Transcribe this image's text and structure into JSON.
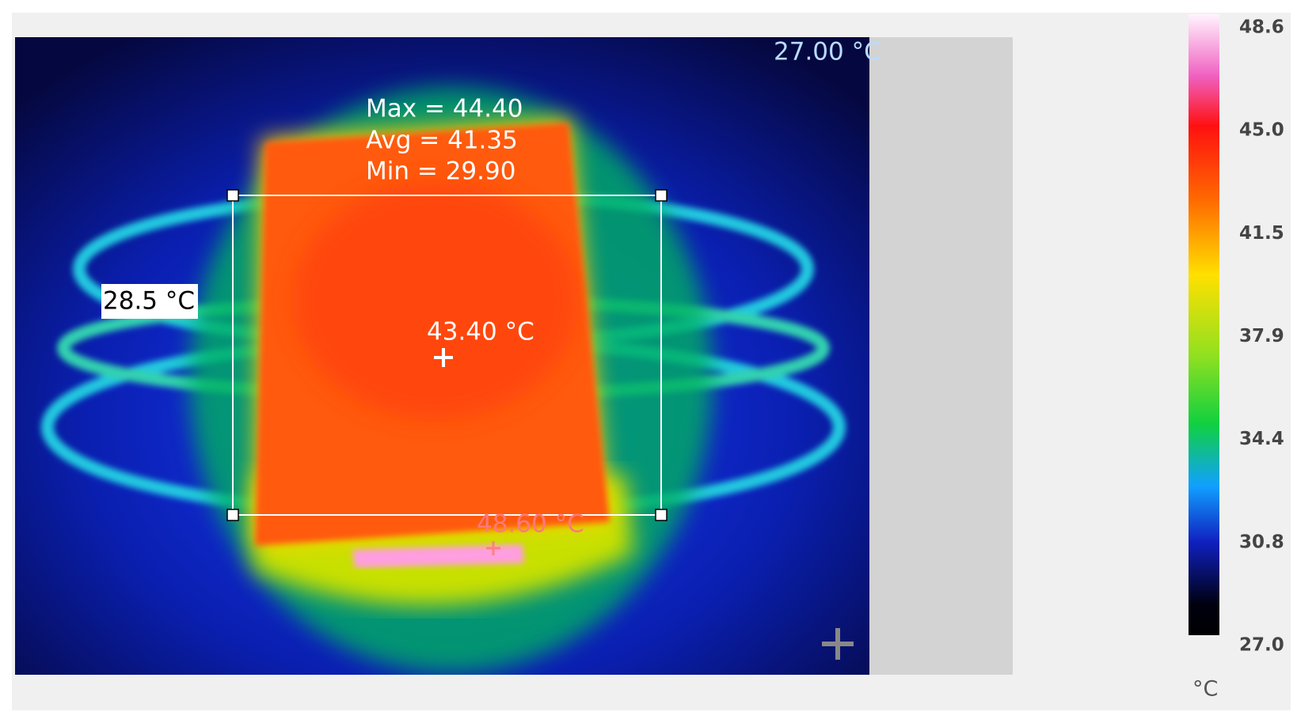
{
  "image": {
    "corner_label": "27.00 °C",
    "spot_label": "28.5 °C",
    "center_label": "43.40 °C",
    "hotspot_label": "48.60 °C"
  },
  "roi": {
    "max": "Max = 44.40",
    "avg": "Avg = 41.35",
    "min": "Min = 29.90"
  },
  "colorbar": {
    "ticks": [
      "48.6",
      "45.0",
      "41.5",
      "37.9",
      "34.4",
      "30.8",
      "27.0"
    ],
    "unit": "°C"
  }
}
